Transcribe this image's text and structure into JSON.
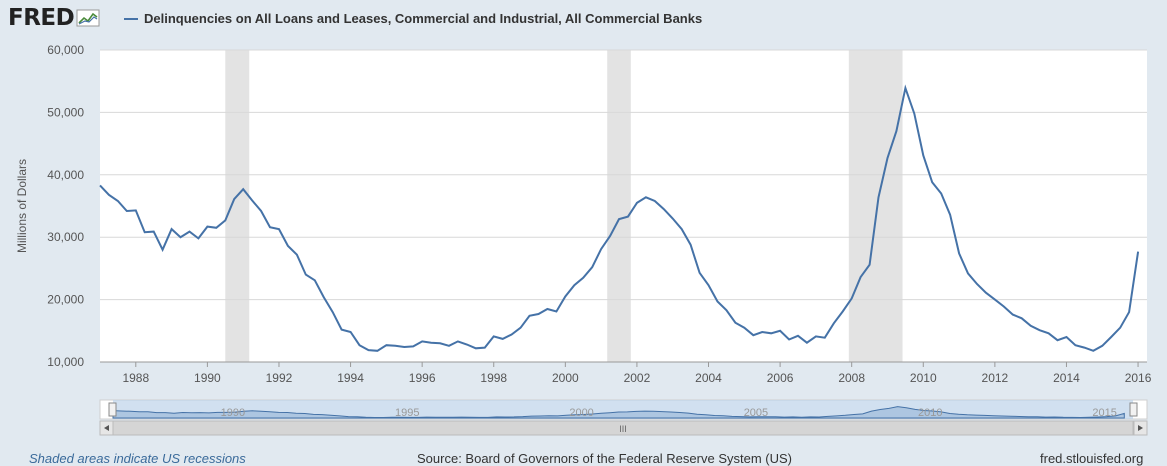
{
  "header": {
    "logo_text": "FRED",
    "legend_label": "Delinquencies on All Loans and Leases, Commercial and Industrial, All Commercial Banks"
  },
  "colors": {
    "series": "#4572a7",
    "recession": "#e3e3e3",
    "background": "#e1e9f0",
    "link": "#3a6a9a"
  },
  "chart_data": {
    "type": "line",
    "title": "",
    "xlabel": "",
    "ylabel": "Millions of Dollars",
    "ylim": [
      10000,
      60000
    ],
    "yticks": [
      10000,
      20000,
      30000,
      40000,
      50000,
      60000
    ],
    "ytick_labels": [
      "10,000",
      "20,000",
      "30,000",
      "40,000",
      "50,000",
      "60,000"
    ],
    "xlim": [
      1987.0,
      2016.25
    ],
    "xticks": [
      1988,
      1990,
      1992,
      1994,
      1996,
      1998,
      2000,
      2002,
      2004,
      2006,
      2008,
      2010,
      2012,
      2014,
      2016
    ],
    "xtick_labels": [
      "1988",
      "1990",
      "1992",
      "1994",
      "1996",
      "1998",
      "2000",
      "2002",
      "2004",
      "2006",
      "2008",
      "2010",
      "2012",
      "2014",
      "2016"
    ],
    "grid": true,
    "recessions": [
      [
        1990.5,
        1991.17
      ],
      [
        2001.17,
        2001.83
      ],
      [
        2007.92,
        2009.42
      ]
    ],
    "series": [
      {
        "values": [
          [
            1987.0,
            38300
          ],
          [
            1987.25,
            36800
          ],
          [
            1987.5,
            35800
          ],
          [
            1987.75,
            34200
          ],
          [
            1988.0,
            34300
          ],
          [
            1988.25,
            30800
          ],
          [
            1988.5,
            30900
          ],
          [
            1988.75,
            28000
          ],
          [
            1989.0,
            31300
          ],
          [
            1989.25,
            30000
          ],
          [
            1989.5,
            30900
          ],
          [
            1989.75,
            29800
          ],
          [
            1990.0,
            31700
          ],
          [
            1990.25,
            31500
          ],
          [
            1990.5,
            32700
          ],
          [
            1990.75,
            36100
          ],
          [
            1991.0,
            37700
          ],
          [
            1991.25,
            35900
          ],
          [
            1991.5,
            34200
          ],
          [
            1991.75,
            31600
          ],
          [
            1992.0,
            31300
          ],
          [
            1992.25,
            28600
          ],
          [
            1992.5,
            27200
          ],
          [
            1992.75,
            24000
          ],
          [
            1993.0,
            23100
          ],
          [
            1993.25,
            20400
          ],
          [
            1993.5,
            18000
          ],
          [
            1993.75,
            15200
          ],
          [
            1994.0,
            14800
          ],
          [
            1994.25,
            12700
          ],
          [
            1994.5,
            11900
          ],
          [
            1994.75,
            11800
          ],
          [
            1995.0,
            12700
          ],
          [
            1995.25,
            12600
          ],
          [
            1995.5,
            12400
          ],
          [
            1995.75,
            12500
          ],
          [
            1996.0,
            13300
          ],
          [
            1996.25,
            13100
          ],
          [
            1996.5,
            13000
          ],
          [
            1996.75,
            12600
          ],
          [
            1997.0,
            13300
          ],
          [
            1997.25,
            12800
          ],
          [
            1997.5,
            12200
          ],
          [
            1997.75,
            12300
          ],
          [
            1998.0,
            14100
          ],
          [
            1998.25,
            13700
          ],
          [
            1998.5,
            14400
          ],
          [
            1998.75,
            15500
          ],
          [
            1999.0,
            17400
          ],
          [
            1999.25,
            17700
          ],
          [
            1999.5,
            18500
          ],
          [
            1999.75,
            18100
          ],
          [
            2000.0,
            20500
          ],
          [
            2000.25,
            22300
          ],
          [
            2000.5,
            23500
          ],
          [
            2000.75,
            25200
          ],
          [
            2001.0,
            28100
          ],
          [
            2001.25,
            30200
          ],
          [
            2001.5,
            32900
          ],
          [
            2001.75,
            33300
          ],
          [
            2002.0,
            35500
          ],
          [
            2002.25,
            36400
          ],
          [
            2002.5,
            35800
          ],
          [
            2002.75,
            34500
          ],
          [
            2003.0,
            33000
          ],
          [
            2003.25,
            31300
          ],
          [
            2003.5,
            28800
          ],
          [
            2003.75,
            24300
          ],
          [
            2004.0,
            22300
          ],
          [
            2004.25,
            19700
          ],
          [
            2004.5,
            18300
          ],
          [
            2004.75,
            16300
          ],
          [
            2005.0,
            15500
          ],
          [
            2005.25,
            14300
          ],
          [
            2005.5,
            14800
          ],
          [
            2005.75,
            14600
          ],
          [
            2006.0,
            15000
          ],
          [
            2006.25,
            13600
          ],
          [
            2006.5,
            14200
          ],
          [
            2006.75,
            13100
          ],
          [
            2007.0,
            14100
          ],
          [
            2007.25,
            13900
          ],
          [
            2007.5,
            16200
          ],
          [
            2007.75,
            18100
          ],
          [
            2008.0,
            20200
          ],
          [
            2008.25,
            23600
          ],
          [
            2008.5,
            25600
          ],
          [
            2008.75,
            36400
          ],
          [
            2009.0,
            42700
          ],
          [
            2009.25,
            47000
          ],
          [
            2009.5,
            53900
          ],
          [
            2009.75,
            49800
          ],
          [
            2010.0,
            43100
          ],
          [
            2010.25,
            38800
          ],
          [
            2010.5,
            37000
          ],
          [
            2010.75,
            33600
          ],
          [
            2011.0,
            27400
          ],
          [
            2011.25,
            24200
          ],
          [
            2011.5,
            22500
          ],
          [
            2011.75,
            21100
          ],
          [
            2012.0,
            20000
          ],
          [
            2012.25,
            18900
          ],
          [
            2012.5,
            17600
          ],
          [
            2012.75,
            17000
          ],
          [
            2013.0,
            15800
          ],
          [
            2013.25,
            15100
          ],
          [
            2013.5,
            14600
          ],
          [
            2013.75,
            13500
          ],
          [
            2014.0,
            14000
          ],
          [
            2014.25,
            12700
          ],
          [
            2014.5,
            12300
          ],
          [
            2014.75,
            11800
          ],
          [
            2015.0,
            12600
          ],
          [
            2015.25,
            14000
          ],
          [
            2015.5,
            15500
          ],
          [
            2015.75,
            18000
          ],
          [
            2016.0,
            27700
          ]
        ]
      }
    ]
  },
  "navigator": {
    "labels": [
      "1990",
      "1995",
      "2000",
      "2005",
      "2010",
      "2015"
    ],
    "handle_label": "III"
  },
  "footer": {
    "recession_note": "Shaded areas indicate US recessions",
    "source": "Source: Board of Governors of the Federal Reserve System (US)",
    "site": "fred.stlouisfed.org"
  }
}
